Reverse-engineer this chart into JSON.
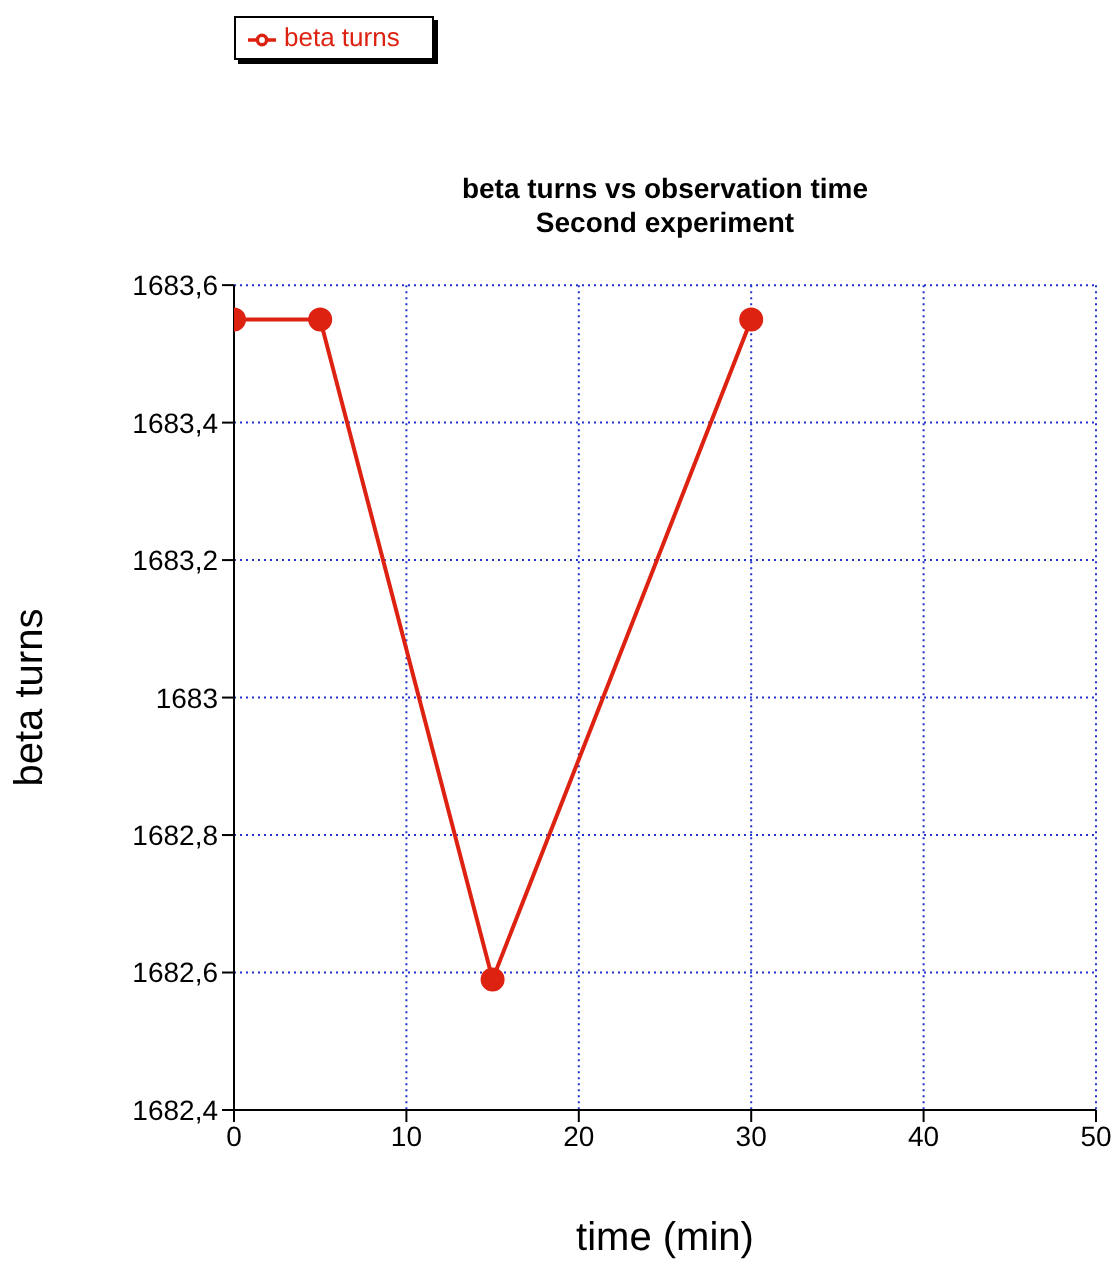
{
  "chart_data": {
    "type": "line",
    "title": "beta turns vs observation time",
    "subtitle": "Second experiment",
    "xlabel": "time (min)",
    "ylabel": "beta turns",
    "x": [
      0,
      5,
      15,
      30
    ],
    "series": [
      {
        "name": "beta turns",
        "color": "#dd2211",
        "values": [
          1683.55,
          1683.55,
          1682.59,
          1683.55
        ]
      }
    ],
    "xlim": [
      0,
      50
    ],
    "xticks": [
      0,
      10,
      20,
      30,
      40,
      50
    ],
    "ylim": [
      1682.4,
      1683.6
    ],
    "yticks": [
      {
        "value": 1682.4,
        "label": "1682,4"
      },
      {
        "value": 1682.6,
        "label": "1682,6"
      },
      {
        "value": 1682.8,
        "label": "1682,8"
      },
      {
        "value": 1683,
        "label": "1683"
      },
      {
        "value": 1683.2,
        "label": "1683,2"
      },
      {
        "value": 1683.4,
        "label": "1683,4"
      },
      {
        "value": 1683.6,
        "label": "1683,6"
      }
    ],
    "grid": true,
    "legend": "top left",
    "marker": "circle",
    "line_style": "solid"
  }
}
